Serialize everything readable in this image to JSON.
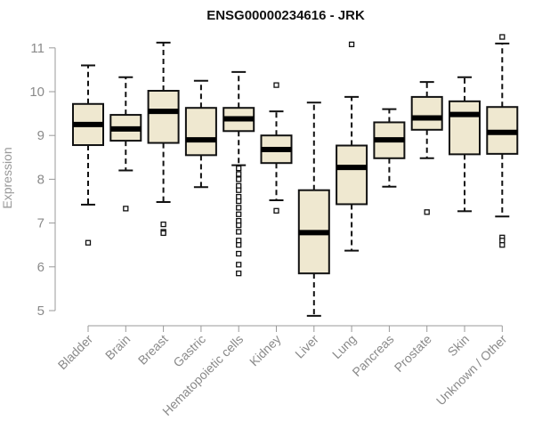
{
  "chart_data": {
    "type": "boxplot",
    "title": "ENSG00000234616 - JRK",
    "xlabel": "",
    "ylabel": "Expression",
    "ylim": [
      4.8,
      11.4
    ],
    "yticks": [
      5,
      6,
      7,
      8,
      9,
      10,
      11
    ],
    "grid": false,
    "colors": {
      "box_fill": "#efe8d0",
      "box_stroke": "#111111",
      "median": "#000000",
      "axis": "#999999"
    },
    "categories": [
      "Bladder",
      "Brain",
      "Breast",
      "Gastric",
      "Hematopoietic cells",
      "Kidney",
      "Liver",
      "Lung",
      "Pancreas",
      "Prostate",
      "Skin",
      "Unknown / Other"
    ],
    "boxes": [
      {
        "name": "Bladder",
        "whisker_low": 7.42,
        "q1": 8.78,
        "median": 9.25,
        "q3": 9.72,
        "whisker_high": 10.6,
        "outliers": [
          6.55
        ]
      },
      {
        "name": "Brain",
        "whisker_low": 8.2,
        "q1": 8.88,
        "median": 9.15,
        "q3": 9.47,
        "whisker_high": 10.33,
        "outliers": [
          7.33
        ]
      },
      {
        "name": "Breast",
        "whisker_low": 7.48,
        "q1": 8.83,
        "median": 9.55,
        "q3": 10.02,
        "whisker_high": 11.12,
        "outliers": [
          6.97,
          6.8,
          6.77
        ]
      },
      {
        "name": "Gastric",
        "whisker_low": 7.82,
        "q1": 8.55,
        "median": 8.9,
        "q3": 9.63,
        "whisker_high": 10.25,
        "outliers": []
      },
      {
        "name": "Hematopoietic cells",
        "whisker_low": 8.32,
        "q1": 9.1,
        "median": 9.38,
        "q3": 9.63,
        "whisker_high": 10.45,
        "outliers": [
          8.25,
          8.12,
          8.0,
          7.85,
          7.75,
          7.6,
          7.5,
          7.35,
          7.2,
          7.05,
          6.95,
          6.8,
          6.6,
          6.5,
          6.3,
          6.05,
          5.85
        ]
      },
      {
        "name": "Kidney",
        "whisker_low": 7.52,
        "q1": 8.37,
        "median": 8.68,
        "q3": 9.0,
        "whisker_high": 9.55,
        "outliers": [
          10.15,
          7.28
        ]
      },
      {
        "name": "Liver",
        "whisker_low": 4.88,
        "q1": 5.85,
        "median": 6.78,
        "q3": 7.75,
        "whisker_high": 9.75,
        "outliers": []
      },
      {
        "name": "Lung",
        "whisker_low": 6.37,
        "q1": 7.43,
        "median": 8.27,
        "q3": 8.77,
        "whisker_high": 9.88,
        "outliers": [
          11.08
        ]
      },
      {
        "name": "Pancreas",
        "whisker_low": 7.83,
        "q1": 8.48,
        "median": 8.9,
        "q3": 9.3,
        "whisker_high": 9.6,
        "outliers": []
      },
      {
        "name": "Prostate",
        "whisker_low": 8.48,
        "q1": 9.13,
        "median": 9.4,
        "q3": 9.88,
        "whisker_high": 10.22,
        "outliers": [
          7.25
        ]
      },
      {
        "name": "Skin",
        "whisker_low": 7.27,
        "q1": 8.57,
        "median": 9.48,
        "q3": 9.78,
        "whisker_high": 10.33,
        "outliers": []
      },
      {
        "name": "Unknown / Other",
        "whisker_low": 7.15,
        "q1": 8.58,
        "median": 9.07,
        "q3": 9.65,
        "whisker_high": 11.1,
        "outliers": [
          11.25,
          6.67,
          6.6,
          6.5
        ]
      }
    ]
  }
}
